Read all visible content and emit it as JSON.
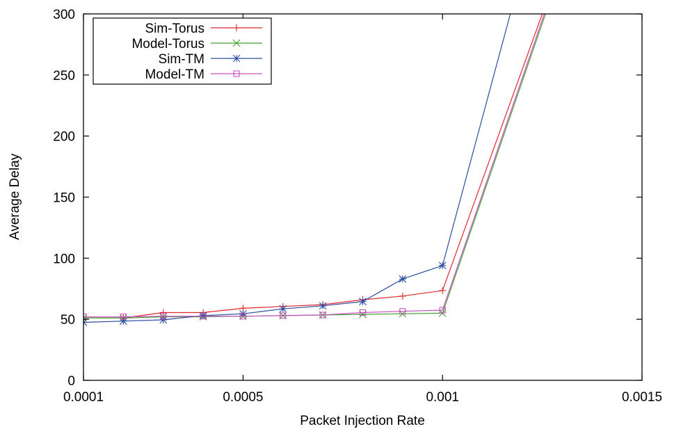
{
  "chart_data": {
    "type": "line",
    "xlabel": "Packet Injection Rate",
    "ylabel": "Average Delay",
    "xlim": [
      0.0001,
      0.0015
    ],
    "ylim": [
      0,
      300
    ],
    "x_ticks": [
      0.0001,
      0.0005,
      0.001,
      0.0015
    ],
    "x_tick_labels": [
      "0.0001",
      "0.0005",
      "0.001",
      "0.0015"
    ],
    "y_ticks": [
      0,
      50,
      100,
      150,
      200,
      250,
      300
    ],
    "y_tick_labels": [
      "0",
      "50",
      "100",
      "150",
      "200",
      "250",
      "300"
    ],
    "grid": false,
    "legend_position": "top-left",
    "series": [
      {
        "name": "Sim-Torus",
        "color": "#e3262b",
        "marker": "plus",
        "x": [
          0.0001,
          0.0002,
          0.0003,
          0.0004,
          0.0005,
          0.0006,
          0.0007,
          0.0008,
          0.0009,
          0.001,
          0.00125
        ],
        "y": [
          51,
          51,
          55.5,
          55.5,
          59,
          60.5,
          62,
          66,
          69,
          73.5,
          300
        ]
      },
      {
        "name": "Model-Torus",
        "color": "#3f9f2c",
        "marker": "cross",
        "x": [
          0.0001,
          0.0002,
          0.0003,
          0.0004,
          0.0005,
          0.0006,
          0.0007,
          0.0008,
          0.0009,
          0.001,
          0.001258
        ],
        "y": [
          51,
          51,
          52,
          52,
          52.5,
          53,
          53.5,
          54,
          54.5,
          55,
          300
        ]
      },
      {
        "name": "Sim-TM",
        "color": "#2a4b9f",
        "marker": "star",
        "x": [
          0.0001,
          0.0002,
          0.0003,
          0.0004,
          0.0005,
          0.0006,
          0.0007,
          0.0008,
          0.0009,
          0.001,
          0.00117
        ],
        "y": [
          47.5,
          48.5,
          49.5,
          53,
          54.5,
          58.5,
          61,
          64.5,
          83,
          94,
          300
        ]
      },
      {
        "name": "Model-TM",
        "color": "#c94fc2",
        "marker": "square",
        "x": [
          0.0001,
          0.0002,
          0.0003,
          0.0004,
          0.0005,
          0.0006,
          0.0007,
          0.0008,
          0.0009,
          0.001,
          0.001255
        ],
        "y": [
          52,
          52,
          52.5,
          52.5,
          52.5,
          53,
          53.5,
          55.5,
          56.5,
          57.5,
          300
        ]
      }
    ]
  }
}
